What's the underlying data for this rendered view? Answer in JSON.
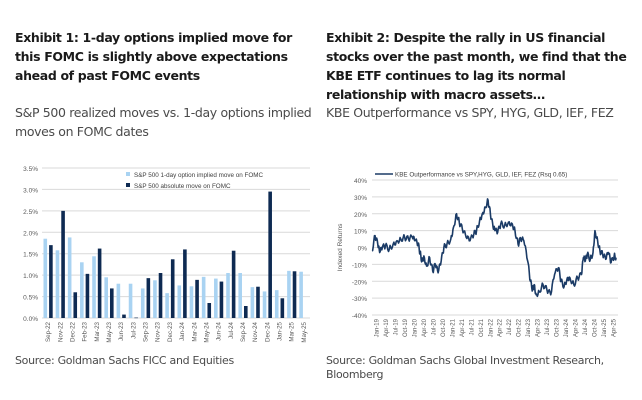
{
  "panel1": {
    "title": "Exhibit 1: 1-day options implied move for this FOMC is slightly above expectations ahead of past FOMC events",
    "subtitle": "S&P 500 realized moves vs. 1-day options implied moves on FOMC dates",
    "source": "Source: Goldman Sachs FICC and Equities"
  },
  "panel2": {
    "title": "Exhibit 2: Despite the rally in US financial stocks over the past month, we find that the KBE ETF continues to lag its normal relationship with macro assets…",
    "subtitle": "KBE Outperformance vs SPY, HYG, GLD, IEF, FEZ",
    "source": "Source: Goldman Sachs Global Investment Research, Bloomberg"
  },
  "colors": {
    "implied": "#a9d3f2",
    "absolute": "#0e2a52",
    "line": "#1b3b66",
    "grid": "#d9d9d9",
    "axis_text": "#595959"
  },
  "chart_data": [
    {
      "type": "bar",
      "title": "S&P 500 realized moves vs. 1-day options implied moves on FOMC dates",
      "xlabel": "",
      "ylabel": "",
      "ylim": [
        0,
        3.5
      ],
      "yticks": [
        "0.0%",
        "0.5%",
        "1.0%",
        "1.5%",
        "2.0%",
        "2.5%",
        "3.0%",
        "3.5%"
      ],
      "grid": true,
      "legend": "top-right",
      "categories": [
        "Sep-22",
        "Nov-22",
        "Dec-22",
        "Feb-23",
        "Mar-23",
        "May-23",
        "Jun-23",
        "Jul-23",
        "Sep-23",
        "Nov-23",
        "Dec-23",
        "Jan-24",
        "Mar-24",
        "May-24",
        "Jun-24",
        "Jul-24",
        "Sep-24",
        "Nov-24",
        "Dec-24",
        "Jan-25",
        "Mar-25",
        "May-25"
      ],
      "series": [
        {
          "name": "S&P 500 1-day option implied move on FOMC",
          "values": [
            1.85,
            1.58,
            1.88,
            1.3,
            1.44,
            0.95,
            0.8,
            0.8,
            0.69,
            0.88,
            0.58,
            0.76,
            0.74,
            0.96,
            0.92,
            1.05,
            1.05,
            0.72,
            0.62,
            0.65,
            1.1,
            1.08
          ]
        },
        {
          "name": "S&P 500 absolute move on FOMC",
          "values": [
            1.7,
            2.5,
            0.6,
            1.03,
            1.62,
            0.69,
            0.08,
            0.01,
            0.93,
            1.05,
            1.37,
            1.6,
            0.89,
            0.35,
            0.85,
            1.57,
            0.28,
            0.73,
            2.95,
            0.46,
            1.09,
            null
          ]
        }
      ]
    },
    {
      "type": "line",
      "title": "KBE Outperformance vs SPY, HYG, GLD, IEF, FEZ",
      "xlabel": "",
      "ylabel": "Indexed Returns",
      "ylim": [
        -40,
        40
      ],
      "yticks": [
        "-40%",
        "-30%",
        "-20%",
        "-10%",
        "0%",
        "10%",
        "20%",
        "30%",
        "40%"
      ],
      "grid": true,
      "legend": "top",
      "xticks": [
        "Jan-19",
        "Apr-19",
        "Jul-19",
        "Oct-19",
        "Jan-20",
        "Apr-20",
        "Jul-20",
        "Oct-20",
        "Jan-21",
        "Apr-21",
        "Jul-21",
        "Oct-21",
        "Jan-22",
        "Apr-22",
        "Jul-22",
        "Oct-22",
        "Jan-23",
        "Apr-23",
        "Jul-23",
        "Oct-23",
        "Jan-24",
        "Apr-24",
        "Jul-24",
        "Oct-24",
        "Jan-25",
        "Apr-25"
      ],
      "series": [
        {
          "name": "KBE Outperformance vs SPY,HYG, GLD, IEF, FEZ (Rsq 0.65)",
          "x": [
            2019.0,
            2019.08,
            2019.15,
            2019.2,
            2019.27,
            2019.35,
            2019.45,
            2019.55,
            2019.65,
            2019.75,
            2019.85,
            2019.95,
            2020.05,
            2020.12,
            2020.2,
            2020.25,
            2020.3,
            2020.35,
            2020.42,
            2020.5,
            2020.58,
            2020.65,
            2020.72,
            2020.8,
            2020.87,
            2020.95,
            2021.05,
            2021.12,
            2021.2,
            2021.27,
            2021.35,
            2021.45,
            2021.55,
            2021.65,
            2021.72,
            2021.8,
            2021.87,
            2021.95,
            2022.02,
            2022.08,
            2022.15,
            2022.2,
            2022.27,
            2022.35,
            2022.45,
            2022.55,
            2022.65,
            2022.72,
            2022.8,
            2022.87,
            2022.95,
            2023.05,
            2023.12,
            2023.18,
            2023.22,
            2023.27,
            2023.35,
            2023.45,
            2023.55,
            2023.65,
            2023.75,
            2023.85,
            2023.92,
            2024.0,
            2024.08,
            2024.15,
            2024.25,
            2024.35,
            2024.45,
            2024.5,
            2024.55,
            2024.6,
            2024.68,
            2024.75,
            2024.8,
            2024.87,
            2024.93,
            2025.0,
            2025.08,
            2025.15,
            2025.22,
            2025.3,
            2025.35
          ],
          "y": [
            -2,
            7,
            2,
            -3,
            0,
            1,
            -1,
            2,
            4,
            5,
            6,
            5,
            6,
            4,
            2,
            -3,
            -8,
            -5,
            -11,
            -6,
            -14,
            -10,
            -15,
            -8,
            0,
            2,
            5,
            12,
            20,
            15,
            11,
            6,
            4,
            8,
            10,
            16,
            20,
            24,
            28,
            20,
            12,
            10,
            9,
            14,
            13,
            15,
            14,
            10,
            2,
            5,
            4,
            -8,
            -20,
            -25,
            -22,
            -28,
            -26,
            -22,
            -25,
            -28,
            -16,
            -12,
            -20,
            -23,
            -18,
            -18,
            -22,
            -18,
            -16,
            -6,
            -8,
            -4,
            -7,
            -3,
            10,
            4,
            -2,
            -4,
            -7,
            -3,
            -9,
            -5,
            -6
          ]
        }
      ]
    }
  ]
}
